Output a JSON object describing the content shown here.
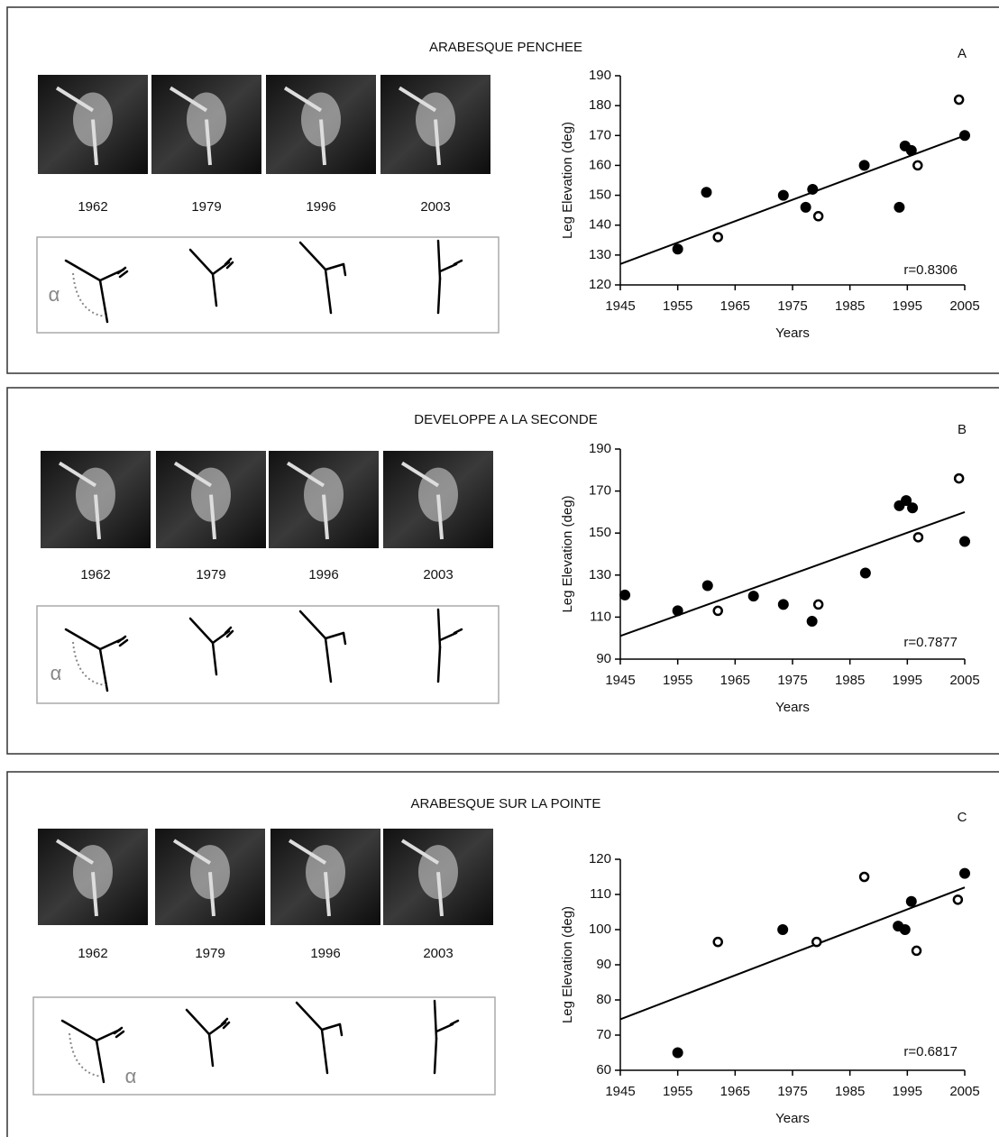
{
  "panels": [
    {
      "captions": [
        "1962",
        "1979",
        "1996",
        "2003"
      ],
      "alpha": "α"
    },
    {
      "captions": [
        "1962",
        "1979",
        "1996",
        "2003"
      ],
      "alpha": "α"
    },
    {
      "captions": [
        "1962",
        "1979",
        "1996",
        "2003"
      ],
      "alpha": "α"
    }
  ],
  "chart_data": [
    {
      "type": "scatter",
      "title": "ARABESQUE PENCHEE",
      "label": "A",
      "x_label": "Years",
      "y_label": "Leg Elevation (deg)",
      "annotation": "r=0.8306",
      "xlim": [
        1945,
        2005
      ],
      "xticks": [
        1945,
        1955,
        1965,
        1975,
        1985,
        1995,
        2005
      ],
      "ylim": [
        120,
        190
      ],
      "yticks": [
        120,
        130,
        140,
        150,
        160,
        170,
        180,
        190
      ],
      "series": [
        {
          "marker": "filled",
          "color": "#000000",
          "x": [
            1955,
            1960,
            1973.4,
            1977.3,
            1978.5,
            1987.5,
            1993.6,
            1994.6,
            1995.7,
            2005
          ],
          "values": [
            132,
            151,
            150,
            146,
            152,
            160,
            146,
            166.5,
            165,
            170
          ]
        },
        {
          "marker": "open",
          "color": "#000000",
          "x": [
            1962,
            1979.5,
            1996.8,
            2004
          ],
          "values": [
            136,
            143,
            160,
            182
          ]
        }
      ],
      "trendline": {
        "x": [
          1945,
          2005
        ],
        "y": [
          127,
          170
        ]
      }
    },
    {
      "type": "scatter",
      "title": "DEVELOPPE A LA SECONDE",
      "label": "B",
      "x_label": "Years",
      "y_label": "Leg Elevation (deg)",
      "annotation": "r=0.7877",
      "xlim": [
        1945,
        2005
      ],
      "xticks": [
        1945,
        1955,
        1965,
        1975,
        1985,
        1995,
        2005
      ],
      "ylim": [
        90,
        190
      ],
      "yticks": [
        90,
        110,
        130,
        150,
        170,
        190
      ],
      "series": [
        {
          "marker": "filled",
          "color": "#000000",
          "x": [
            1945.8,
            1955,
            1960.2,
            1968.2,
            1973.4,
            1978.4,
            1987.7,
            1993.6,
            1994.8,
            1995.9,
            2005
          ],
          "values": [
            120.5,
            113,
            125,
            120,
            116,
            108,
            131,
            163,
            165.5,
            162,
            146
          ]
        },
        {
          "marker": "open",
          "color": "#000000",
          "x": [
            1962,
            1979.5,
            1996.9,
            2004
          ],
          "values": [
            113,
            116,
            148,
            176
          ]
        }
      ],
      "trendline": {
        "x": [
          1945,
          2005
        ],
        "y": [
          101,
          160
        ]
      }
    },
    {
      "type": "scatter",
      "title": "ARABESQUE SUR LA POINTE",
      "label": "C",
      "x_label": "Years",
      "y_label": "Leg Elevation (deg)",
      "annotation": "r=0.6817",
      "xlim": [
        1945,
        2005
      ],
      "xticks": [
        1945,
        1955,
        1965,
        1975,
        1985,
        1995,
        2005
      ],
      "ylim": [
        60,
        120
      ],
      "yticks": [
        60,
        70,
        80,
        90,
        100,
        110,
        120
      ],
      "series": [
        {
          "marker": "filled",
          "color": "#000000",
          "x": [
            1955,
            1973.3,
            1993.4,
            1994.6,
            1995.7,
            2005
          ],
          "values": [
            65,
            100,
            101,
            100,
            108,
            116
          ]
        },
        {
          "marker": "open",
          "color": "#000000",
          "x": [
            1962,
            1979.2,
            1987.5,
            1996.6,
            2003.8
          ],
          "values": [
            96.5,
            96.5,
            115,
            94,
            108.5
          ]
        }
      ],
      "trendline": {
        "x": [
          1945,
          2005
        ],
        "y": [
          74.5,
          112
        ]
      }
    }
  ]
}
